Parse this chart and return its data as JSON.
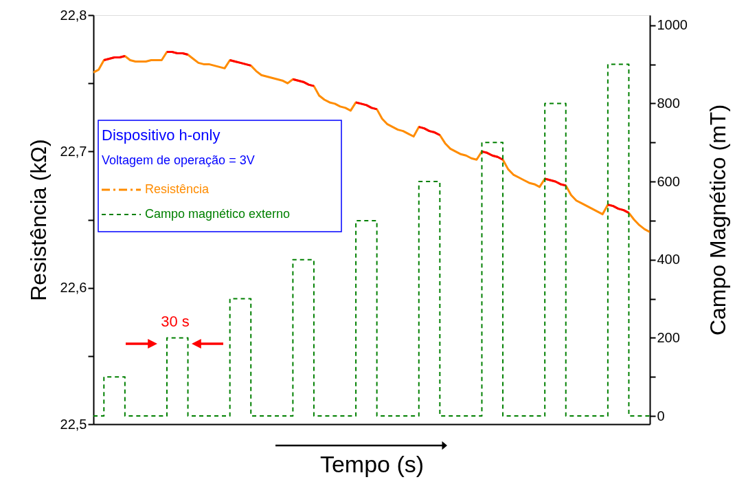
{
  "chart_data": {
    "type": "line",
    "xlabel": "Tempo (s)",
    "ylabel": "Resistência (kΩ)",
    "y2label": "Campo Magnético (mT)",
    "legend_title": "Dispositivo h-only",
    "annotations": [
      "Voltagem de operação = 3V",
      "30 s"
    ],
    "categories": [
      null,
      null,
      null,
      null,
      null,
      null,
      null,
      null,
      null,
      null,
      null,
      null,
      null,
      null,
      null,
      null,
      null,
      null,
      null,
      null,
      null,
      null,
      null,
      null,
      null,
      null,
      null,
      null,
      null,
      null,
      null,
      null,
      null,
      null,
      null,
      null,
      null,
      null,
      null,
      null,
      null,
      null,
      null,
      null,
      null,
      null,
      null,
      null,
      null,
      null,
      null,
      null,
      null,
      null,
      null,
      null,
      null,
      null,
      null,
      null,
      null,
      null,
      null,
      null,
      null,
      null,
      null,
      null,
      null,
      null,
      null,
      null,
      null,
      null,
      null,
      null,
      null,
      null,
      null,
      null,
      null,
      null,
      null,
      null,
      null,
      null,
      null,
      null,
      null,
      null,
      null,
      null,
      null,
      null,
      null,
      null,
      null,
      null,
      null,
      null,
      null,
      null,
      null,
      null,
      null,
      null,
      null
    ],
    "series": [
      {
        "name": "Resistência",
        "color": "#ff8c00",
        "line_style": "solid",
        "values": [
          22.758,
          22.76,
          22.767,
          22.768,
          22.769,
          22.769,
          22.77,
          22.767,
          22.766,
          22.766,
          22.766,
          22.767,
          22.767,
          22.767,
          22.773,
          22.773,
          22.772,
          22.772,
          22.771,
          22.768,
          22.765,
          22.764,
          22.764,
          22.763,
          22.762,
          22.761,
          22.767,
          22.766,
          22.765,
          22.764,
          22.763,
          22.759,
          22.756,
          22.755,
          22.754,
          22.753,
          22.752,
          22.75,
          22.753,
          22.752,
          22.751,
          22.749,
          22.748,
          22.741,
          22.738,
          22.736,
          22.735,
          22.733,
          22.732,
          22.73,
          22.736,
          22.735,
          22.734,
          22.732,
          22.731,
          22.724,
          22.72,
          22.718,
          22.716,
          22.715,
          22.713,
          22.711,
          22.718,
          22.717,
          22.715,
          22.714,
          22.712,
          22.706,
          22.702,
          22.7,
          22.698,
          22.697,
          22.695,
          22.694,
          22.7,
          22.699,
          22.697,
          22.696,
          22.694,
          22.687,
          22.683,
          22.681,
          22.679,
          22.677,
          22.676,
          22.674,
          22.68,
          22.679,
          22.678,
          22.676,
          22.675,
          22.668,
          22.664,
          22.662,
          22.66,
          22.658,
          22.656,
          22.654,
          22.661,
          22.66,
          22.658,
          22.657,
          22.655,
          22.65,
          22.646,
          22.643,
          22.641
        ]
      },
      {
        "color": "#ff0000",
        "line_style": "solid",
        "values": [
          null,
          null,
          22.767,
          22.768,
          22.769,
          22.769,
          22.77,
          null,
          null,
          null,
          null,
          null,
          null,
          null,
          22.773,
          22.773,
          22.772,
          22.772,
          22.771,
          null,
          null,
          null,
          null,
          null,
          null,
          null,
          22.767,
          22.766,
          22.765,
          22.764,
          22.763,
          null,
          null,
          null,
          null,
          null,
          null,
          null,
          22.753,
          22.752,
          22.751,
          22.749,
          22.748,
          null,
          null,
          null,
          null,
          null,
          null,
          null,
          22.736,
          22.735,
          22.734,
          22.732,
          22.731,
          null,
          null,
          null,
          null,
          null,
          null,
          null,
          22.718,
          22.717,
          22.715,
          22.714,
          22.712,
          null,
          null,
          null,
          null,
          null,
          null,
          null,
          22.7,
          22.699,
          22.697,
          22.696,
          22.694,
          null,
          null,
          null,
          null,
          null,
          null,
          null,
          22.68,
          22.679,
          22.678,
          22.676,
          22.675,
          null,
          null,
          null,
          null,
          null,
          null,
          null,
          22.661,
          22.66,
          22.658,
          22.657,
          22.655,
          null,
          null,
          null,
          null
        ]
      },
      {
        "name": "Campo magnético externo",
        "color": "#008000",
        "line_style": "dashed",
        "axis": "y2",
        "type": "step",
        "values": [
          0,
          0,
          100,
          100,
          100,
          100,
          0,
          0,
          0,
          0,
          0,
          0,
          0,
          0,
          200,
          200,
          200,
          200,
          0,
          0,
          0,
          0,
          0,
          0,
          0,
          0,
          300,
          300,
          300,
          300,
          0,
          0,
          0,
          0,
          0,
          0,
          0,
          0,
          400,
          400,
          400,
          400,
          0,
          0,
          0,
          0,
          0,
          0,
          0,
          0,
          500,
          500,
          500,
          500,
          0,
          0,
          0,
          0,
          0,
          0,
          0,
          0,
          600,
          600,
          600,
          600,
          0,
          0,
          0,
          0,
          0,
          0,
          0,
          0,
          700,
          700,
          700,
          700,
          0,
          0,
          0,
          0,
          0,
          0,
          0,
          0,
          800,
          800,
          800,
          800,
          0,
          0,
          0,
          0,
          0,
          0,
          0,
          0,
          900,
          900,
          900,
          900,
          0,
          0,
          0,
          0,
          0
        ]
      }
    ],
    "ylim": [
      22.5,
      22.8
    ],
    "yticks": [
      {
        "value": 22.5,
        "label": "22,5"
      },
      {
        "value": 22.55,
        "label": null
      },
      {
        "value": 22.6,
        "label": "22,6"
      },
      {
        "value": 22.65,
        "label": null
      },
      {
        "value": 22.7,
        "label": "22,7"
      },
      {
        "value": 22.75,
        "label": null
      },
      {
        "value": 22.8,
        "label": "22,8"
      }
    ],
    "y2lim": [
      -21,
      1026
    ],
    "y2ticks": [
      0,
      {
        "value": 100,
        "label": null
      },
      200,
      {
        "value": 300,
        "label": null
      },
      400,
      {
        "value": 500,
        "label": null
      },
      600,
      {
        "value": 700,
        "label": null
      },
      800,
      {
        "value": 900,
        "label": null
      },
      1000
    ],
    "legend": "left",
    "grid": false
  }
}
